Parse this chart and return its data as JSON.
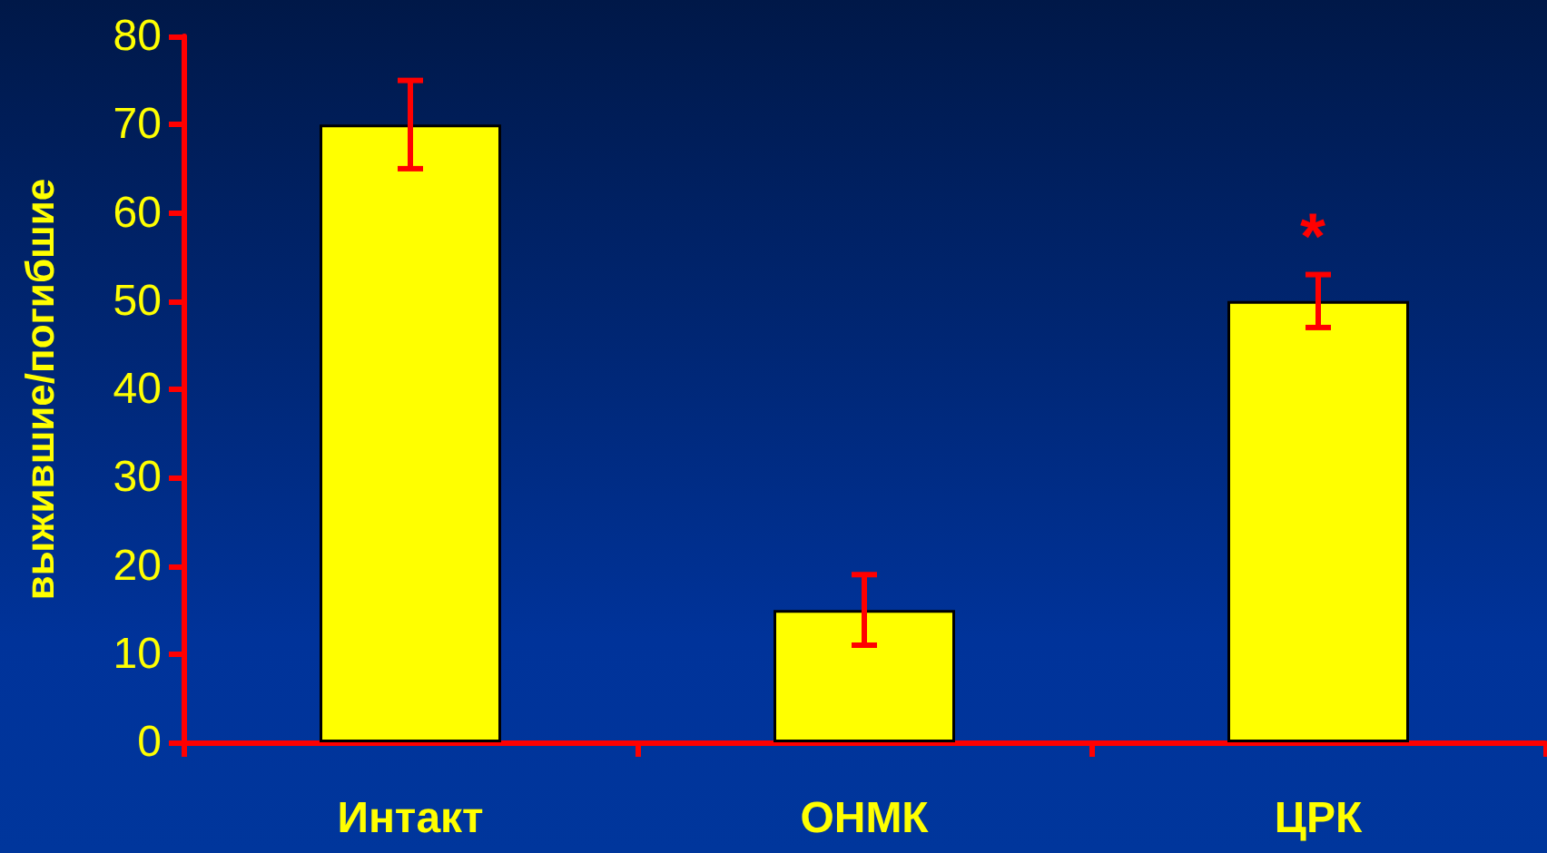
{
  "chart_data": {
    "type": "bar",
    "ylabel": "выжившие/погибшие",
    "categories": [
      "Интакт",
      "ОНМК",
      "ЦРК"
    ],
    "values": [
      70,
      15,
      50
    ],
    "errors": [
      5,
      4,
      3
    ],
    "color": "#ffff00",
    "ylim": [
      0,
      80
    ],
    "yticks": [
      0,
      10,
      20,
      30,
      40,
      50,
      60,
      70,
      80
    ],
    "grid": false,
    "annotations": [
      "*"
    ]
  }
}
